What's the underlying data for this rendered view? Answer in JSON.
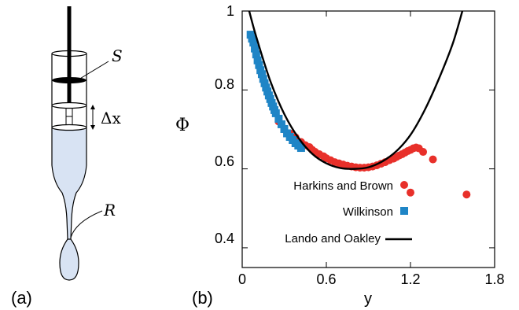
{
  "panel_a": {
    "label": "(a)",
    "symbols": {
      "S": "S",
      "delta_x": "Δx",
      "R": "R"
    },
    "colors": {
      "liquid": "#d8e3f3",
      "outline": "#000000"
    }
  },
  "panel_b": {
    "label": "(b)",
    "ylabel": "Φ",
    "xlabel": "y",
    "xticks": [
      "0",
      "0.6",
      "1.2",
      "1.8"
    ],
    "yticks": [
      "0.4",
      "0.6",
      "0.8",
      "1"
    ],
    "legend": {
      "harkins": "Harkins and Brown",
      "wilkinson": "Wilkinson",
      "lando": "Lando and Oakley"
    },
    "colors": {
      "harkins": "#e8302a",
      "wilkinson": "#1f85c6",
      "lando": "#000000"
    }
  },
  "chart_data": {
    "type": "scatter",
    "xlabel": "y",
    "ylabel": "Φ",
    "xlim": [
      0,
      1.8
    ],
    "ylim": [
      0.35,
      1.0
    ],
    "grid": false,
    "legend_position": "bottom-right",
    "series": [
      {
        "name": "Harkins and Brown",
        "marker": "circle",
        "x": [
          0.26,
          0.3,
          0.34,
          0.38,
          0.42,
          0.45,
          0.48,
          0.5,
          0.52,
          0.55,
          0.58,
          0.6,
          0.63,
          0.66,
          0.69,
          0.72,
          0.75,
          0.78,
          0.81,
          0.84,
          0.87,
          0.9,
          0.93,
          0.96,
          0.99,
          1.02,
          1.05,
          1.08,
          1.1,
          1.12,
          1.14,
          1.16,
          1.18,
          1.2,
          1.22,
          1.24,
          1.26,
          1.29,
          1.36
        ],
        "y": [
          0.72,
          0.7,
          0.69,
          0.68,
          0.668,
          0.66,
          0.655,
          0.648,
          0.643,
          0.637,
          0.632,
          0.627,
          0.622,
          0.617,
          0.614,
          0.611,
          0.608,
          0.606,
          0.604,
          0.603,
          0.603,
          0.604,
          0.606,
          0.609,
          0.613,
          0.617,
          0.622,
          0.626,
          0.63,
          0.634,
          0.637,
          0.641,
          0.645,
          0.648,
          0.652,
          0.654,
          0.652,
          0.643,
          0.624
        ]
      },
      {
        "name": "Wilkinson",
        "marker": "square",
        "x": [
          0.06,
          0.07,
          0.08,
          0.09,
          0.1,
          0.11,
          0.12,
          0.13,
          0.14,
          0.15,
          0.16,
          0.17,
          0.18,
          0.19,
          0.2,
          0.21,
          0.22,
          0.23,
          0.24,
          0.26,
          0.28,
          0.3,
          0.32,
          0.34,
          0.36,
          0.38,
          0.4,
          0.42
        ],
        "y": [
          0.94,
          0.93,
          0.92,
          0.905,
          0.89,
          0.875,
          0.863,
          0.85,
          0.84,
          0.828,
          0.817,
          0.806,
          0.796,
          0.786,
          0.777,
          0.767,
          0.758,
          0.749,
          0.741,
          0.727,
          0.713,
          0.701,
          0.69,
          0.681,
          0.673,
          0.665,
          0.659,
          0.653
        ]
      },
      {
        "name": "Lando and Oakley",
        "marker": "line",
        "x": [
          0.05,
          0.1,
          0.2,
          0.3,
          0.4,
          0.5,
          0.6,
          0.7,
          0.8,
          0.9,
          1.0,
          1.1,
          1.2,
          1.3,
          1.4,
          1.5,
          1.57
        ],
        "y": [
          1.0,
          0.935,
          0.823,
          0.739,
          0.679,
          0.638,
          0.614,
          0.602,
          0.6,
          0.604,
          0.619,
          0.645,
          0.686,
          0.748,
          0.826,
          0.916,
          1.0
        ]
      }
    ],
    "outliers": {
      "series": "Harkins and Brown",
      "x": [
        1.2,
        1.6
      ],
      "y": [
        0.54,
        0.535
      ]
    }
  }
}
